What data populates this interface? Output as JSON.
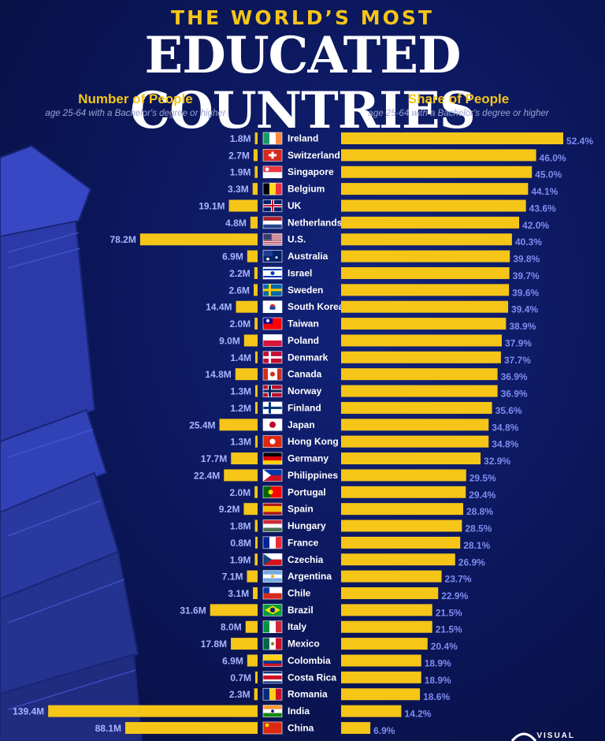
{
  "title_top": "THE WORLD’S MOST",
  "title_main": "EDUCATED COUNTRIES",
  "left_header": {
    "title": "Number of People",
    "subtitle": "age 25-64 with a Bachelor's degree or higher"
  },
  "right_header": {
    "title": "Share of People",
    "subtitle": "age 25-64 with a Bachelor's degree or higher"
  },
  "logo_text": "VISUAL",
  "colors": {
    "bar": "#f5c518",
    "left_label": "#a9b4ff",
    "right_label": "#7f8cf0",
    "country": "#ffffff"
  },
  "chart_data": {
    "type": "bar",
    "categories": [
      "Ireland",
      "Switzerland",
      "Singapore",
      "Belgium",
      "UK",
      "Netherlands",
      "U.S.",
      "Australia",
      "Israel",
      "Sweden",
      "South Korea",
      "Taiwan",
      "Poland",
      "Denmark",
      "Canada",
      "Norway",
      "Finland",
      "Japan",
      "Hong Kong",
      "Germany",
      "Philippines",
      "Portugal",
      "Spain",
      "Hungary",
      "France",
      "Czechia",
      "Argentina",
      "Chile",
      "Brazil",
      "Italy",
      "Mexico",
      "Colombia",
      "Costa Rica",
      "Romania",
      "India",
      "China"
    ],
    "flags": [
      "ireland-flag",
      "switzerland-flag",
      "singapore-flag",
      "belgium-flag",
      "uk-flag",
      "netherlands-flag",
      "us-flag",
      "australia-flag",
      "israel-flag",
      "sweden-flag",
      "south-korea-flag",
      "taiwan-flag",
      "poland-flag",
      "denmark-flag",
      "canada-flag",
      "norway-flag",
      "finland-flag",
      "japan-flag",
      "hong-kong-flag",
      "germany-flag",
      "philippines-flag",
      "portugal-flag",
      "spain-flag",
      "hungary-flag",
      "france-flag",
      "czechia-flag",
      "argentina-flag",
      "chile-flag",
      "brazil-flag",
      "italy-flag",
      "mexico-flag",
      "colombia-flag",
      "costa-rica-flag",
      "romania-flag",
      "india-flag",
      "china-flag"
    ],
    "series": [
      {
        "name": "Number of People",
        "unit": "M",
        "values": [
          1.8,
          2.7,
          1.9,
          3.3,
          19.1,
          4.8,
          78.2,
          6.9,
          2.2,
          2.6,
          14.4,
          2.0,
          9.0,
          1.4,
          14.8,
          1.3,
          1.2,
          25.4,
          1.3,
          17.7,
          22.4,
          2.0,
          9.2,
          1.8,
          0.8,
          1.9,
          7.1,
          3.1,
          31.6,
          8.0,
          17.8,
          6.9,
          0.7,
          2.3,
          139.4,
          88.1
        ],
        "labels": [
          "1.8M",
          "2.7M",
          "1.9M",
          "3.3M",
          "19.1M",
          "4.8M",
          "78.2M",
          "6.9M",
          "2.2M",
          "2.6M",
          "14.4M",
          "2.0M",
          "9.0M",
          "1.4M",
          "14.8M",
          "1.3M",
          "1.2M",
          "25.4M",
          "1.3M",
          "17.7M",
          "22.4M",
          "2.0M",
          "9.2M",
          "1.8M",
          "0.8M",
          "1.9M",
          "7.1M",
          "3.1M",
          "31.6M",
          "8.0M",
          "17.8M",
          "6.9M",
          "0.7M",
          "2.3M",
          "139.4M",
          "88.1M"
        ]
      },
      {
        "name": "Share of People",
        "unit": "%",
        "values": [
          52.4,
          46.0,
          45.0,
          44.1,
          43.6,
          42.0,
          40.3,
          39.8,
          39.7,
          39.6,
          39.4,
          38.9,
          37.9,
          37.7,
          36.9,
          36.9,
          35.6,
          34.8,
          34.8,
          32.9,
          29.5,
          29.4,
          28.8,
          28.5,
          28.1,
          26.9,
          23.7,
          22.9,
          21.5,
          21.5,
          20.4,
          18.9,
          18.9,
          18.6,
          14.2,
          6.9
        ],
        "labels": [
          "52.4%",
          "46.0%",
          "45.0%",
          "44.1%",
          "43.6%",
          "42.0%",
          "40.3%",
          "39.8%",
          "39.7%",
          "39.6%",
          "39.4%",
          "38.9%",
          "37.9%",
          "37.7%",
          "36.9%",
          "36.9%",
          "35.6%",
          "34.8%",
          "34.8%",
          "32.9%",
          "29.5%",
          "29.4%",
          "28.8%",
          "28.5%",
          "28.1%",
          "26.9%",
          "23.7%",
          "22.9%",
          "21.5%",
          "21.5%",
          "20.4%",
          "18.9%",
          "18.9%",
          "18.6%",
          "14.2%",
          "6.9%"
        ]
      }
    ]
  }
}
